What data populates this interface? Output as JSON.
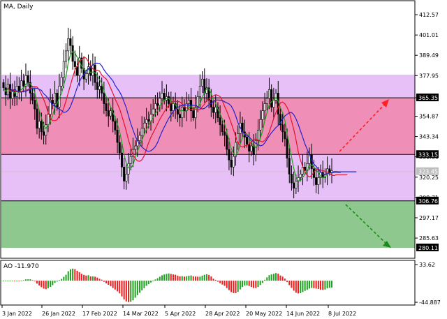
{
  "header": {
    "symbol_timeframe": "MA, Daily"
  },
  "chart_data": [
    {
      "type": "candlestick",
      "title": "MA, Daily",
      "ylim": [
        274.0,
        424.0
      ],
      "y_ticks": [
        412.57,
        401.01,
        389.49,
        377.95,
        365.35,
        354.87,
        343.34,
        331.8,
        320.25,
        308.71,
        297.17,
        285.63
      ],
      "x_ticks": [
        "3 Jan 2022",
        "26 Jan 2022",
        "17 Feb 2022",
        "14 Mar 2022",
        "5 Apr 2022",
        "28 Apr 2022",
        "20 May 2022",
        "14 Jun 2022",
        "8 Jul 2022"
      ],
      "price_labels": [
        {
          "text": "365.35",
          "value": 365.35,
          "color": "#000000"
        },
        {
          "text": "333.15",
          "value": 333.15,
          "color": "#000000"
        },
        {
          "text": "323.45",
          "value": 323.45,
          "color": "#bfbfbf"
        },
        {
          "text": "306.76",
          "value": 306.76,
          "color": "#000000"
        },
        {
          "text": "280.11",
          "value": 280.11,
          "color": "#000000"
        }
      ],
      "zones": [
        {
          "from": 280.11,
          "to": 306.76,
          "color": "#8fc88f"
        },
        {
          "from": 306.76,
          "to": 333.15,
          "color": "#e8c0f8"
        },
        {
          "from": 333.15,
          "to": 365.35,
          "color": "#ef8fb8"
        },
        {
          "from": 365.35,
          "to": 378.5,
          "color": "#e8c0f8"
        }
      ],
      "closes": [
        371,
        367,
        373,
        365,
        369,
        366,
        372,
        369,
        375,
        372,
        378,
        374,
        368,
        364,
        359,
        348,
        352,
        346,
        344,
        350,
        356,
        364,
        362,
        368,
        360,
        372,
        377,
        386,
        392,
        399,
        395,
        386,
        383,
        378,
        388,
        382,
        376,
        379,
        383,
        378,
        384,
        374,
        370,
        372,
        368,
        362,
        358,
        355,
        358,
        352,
        347,
        340,
        334,
        326,
        318,
        322,
        328,
        332,
        336,
        338,
        341,
        344,
        348,
        351,
        353,
        352,
        356,
        359,
        362,
        361,
        365,
        368,
        364,
        366,
        362,
        358,
        362,
        359,
        356,
        354,
        360,
        358,
        362,
        364,
        358,
        354,
        360,
        366,
        372,
        376,
        368,
        371,
        364,
        360,
        357,
        360,
        354,
        350,
        346,
        344,
        336,
        330,
        326,
        332,
        340,
        345,
        351,
        346,
        343,
        339,
        335,
        338,
        333,
        341,
        347,
        353,
        358,
        362,
        365,
        370,
        360,
        364,
        368,
        356,
        350,
        346,
        342,
        331,
        322,
        317,
        314,
        318,
        320,
        322,
        326,
        324,
        328,
        333,
        325,
        320,
        316,
        320,
        323,
        320,
        322,
        325,
        323,
        324
      ]
    },
    {
      "type": "bar",
      "title": "AO -11.970",
      "ylim": [
        -44.887,
        33.62
      ],
      "y_ticks": [
        33.62,
        -44.887
      ],
      "series": [
        {
          "name": "AO",
          "value_label": "-11.970"
        }
      ]
    }
  ]
}
